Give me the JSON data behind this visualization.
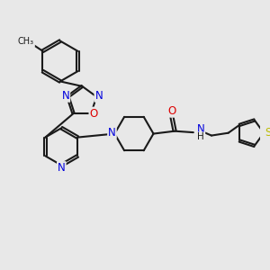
{
  "background_color": "#e8e8e8",
  "atom_colors": {
    "C": "#1a1a1a",
    "N": "#0000dd",
    "O": "#dd0000",
    "S": "#bbbb00",
    "H": "#1a1a1a"
  },
  "bond_color": "#1a1a1a",
  "bond_width": 1.5,
  "dbo": 0.055,
  "font_size": 8.5,
  "fig_size": [
    3.0,
    3.0
  ],
  "dpi": 100
}
